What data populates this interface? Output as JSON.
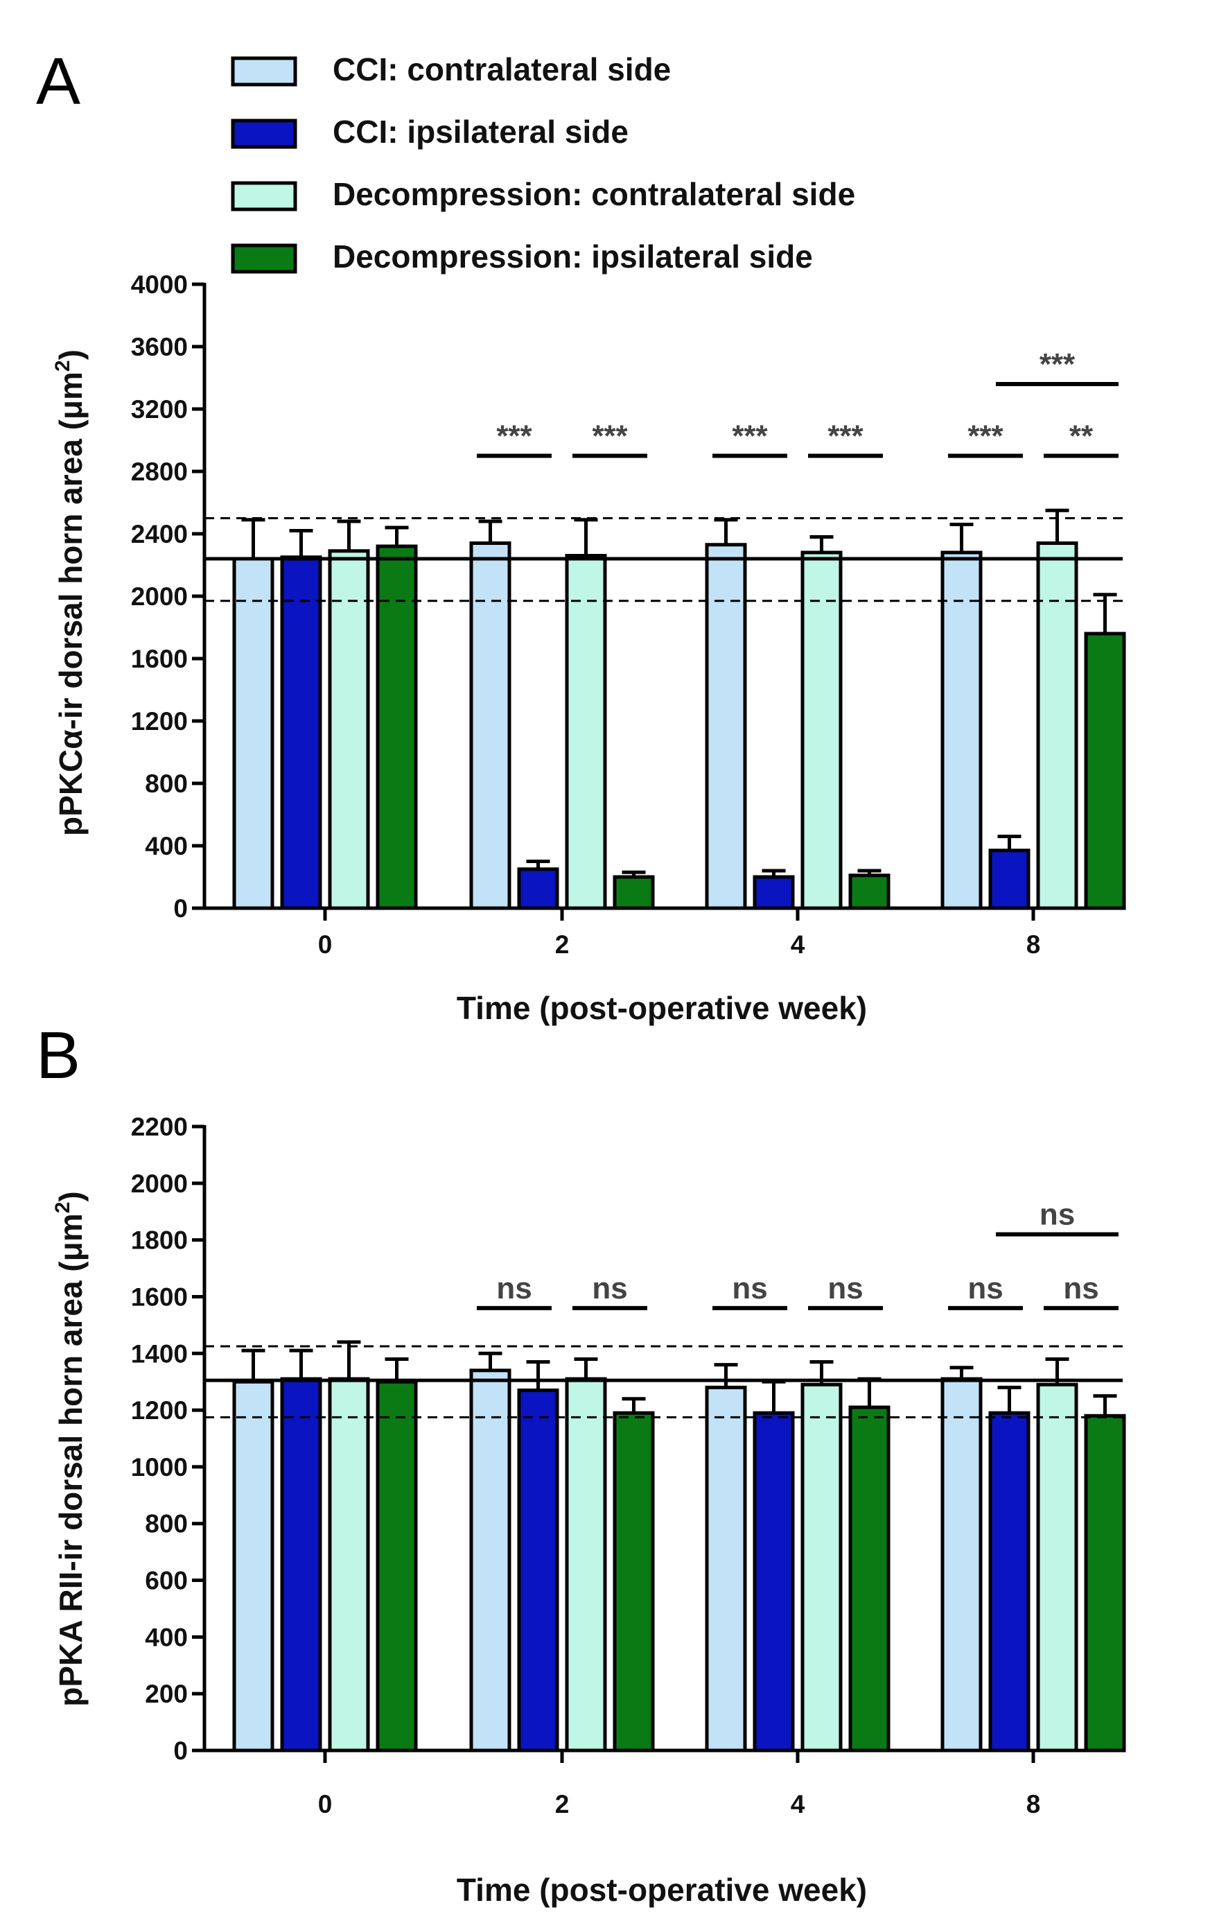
{
  "legend": [
    {
      "label": "CCI: contralateral side",
      "color": "#c2e2f7"
    },
    {
      "label": "CCI: ipsilateral side",
      "color": "#0a14c0"
    },
    {
      "label": "Decompression: contralateral side",
      "color": "#bff6e6"
    },
    {
      "label": "Decompression: ipsilateral side",
      "color": "#0a7a14"
    }
  ],
  "chart_data": [
    {
      "panel": "A",
      "type": "bar",
      "xlabel": "Time (post-operative week)",
      "ylabel": "pPKCα-ir dorsal horn area (μm²)",
      "ylabel_main": "pPKCα-ir dorsal horn area (μm",
      "ylabel_sup": "2",
      "ylabel_close": ")",
      "ylim": [
        0,
        4000
      ],
      "yticks": [
        "0",
        "400",
        "800",
        "1200",
        "1600",
        "2000",
        "2400",
        "2800",
        "3200",
        "3600",
        "4000"
      ],
      "categories": [
        "0",
        "2",
        "4",
        "8"
      ],
      "series": [
        {
          "name": "CCI: contralateral side",
          "values": [
            2240,
            2340,
            2330,
            2280
          ],
          "errors": [
            250,
            140,
            160,
            180
          ]
        },
        {
          "name": "CCI: ipsilateral side",
          "values": [
            2250,
            250,
            200,
            370
          ],
          "errors": [
            170,
            50,
            40,
            90
          ]
        },
        {
          "name": "Decompression: contralateral side",
          "values": [
            2290,
            2260,
            2280,
            2340
          ],
          "errors": [
            190,
            230,
            100,
            210
          ]
        },
        {
          "name": "Decompression: ipsilateral side",
          "values": [
            2320,
            200,
            210,
            1760
          ],
          "errors": [
            120,
            30,
            30,
            250
          ]
        }
      ],
      "reference": {
        "mean": 2240,
        "upper": 2500,
        "lower": 1970
      },
      "significance": [
        {
          "label": "***",
          "group": 1,
          "from": 0,
          "to": 1,
          "level": 2900
        },
        {
          "label": "***",
          "group": 1,
          "from": 2,
          "to": 3,
          "level": 2900
        },
        {
          "label": "***",
          "group": 2,
          "from": 0,
          "to": 1,
          "level": 2900
        },
        {
          "label": "***",
          "group": 2,
          "from": 2,
          "to": 3,
          "level": 2900
        },
        {
          "label": "***",
          "group": 3,
          "from": 0,
          "to": 1,
          "level": 2900
        },
        {
          "label": "**",
          "group": 3,
          "from": 2,
          "to": 3,
          "level": 2900
        },
        {
          "label": "***",
          "group": 3,
          "from": 1,
          "to": 3,
          "level": 3360
        }
      ]
    },
    {
      "panel": "B",
      "type": "bar",
      "xlabel": "Time (post-operative week)",
      "ylabel": "pPKA RII-ir dorsal horn area (μm²)",
      "ylabel_main": "pPKA RII-ir dorsal horn area (μm",
      "ylabel_sup": "2",
      "ylabel_close": ")",
      "ylim": [
        0,
        2200
      ],
      "yticks": [
        "0",
        "200",
        "400",
        "600",
        "800",
        "1000",
        "1200",
        "1400",
        "1600",
        "1800",
        "2000",
        "2200"
      ],
      "categories": [
        "0",
        "2",
        "4",
        "8"
      ],
      "series": [
        {
          "name": "CCI: contralateral side",
          "values": [
            1300,
            1340,
            1280,
            1310
          ],
          "errors": [
            110,
            60,
            80,
            40
          ]
        },
        {
          "name": "CCI: ipsilateral side",
          "values": [
            1310,
            1270,
            1190,
            1190
          ],
          "errors": [
            100,
            100,
            110,
            90
          ]
        },
        {
          "name": "Decompression: contralateral side",
          "values": [
            1310,
            1310,
            1290,
            1290
          ],
          "errors": [
            130,
            70,
            80,
            90
          ]
        },
        {
          "name": "Decompression: ipsilateral side",
          "values": [
            1300,
            1190,
            1210,
            1180
          ],
          "errors": [
            80,
            50,
            100,
            70
          ]
        }
      ],
      "reference": {
        "mean": 1305,
        "upper": 1425,
        "lower": 1175
      },
      "significance": [
        {
          "label": "ns",
          "group": 1,
          "from": 0,
          "to": 1,
          "level": 1560
        },
        {
          "label": "ns",
          "group": 1,
          "from": 2,
          "to": 3,
          "level": 1560
        },
        {
          "label": "ns",
          "group": 2,
          "from": 0,
          "to": 1,
          "level": 1560
        },
        {
          "label": "ns",
          "group": 2,
          "from": 2,
          "to": 3,
          "level": 1560
        },
        {
          "label": "ns",
          "group": 3,
          "from": 0,
          "to": 1,
          "level": 1560
        },
        {
          "label": "ns",
          "group": 3,
          "from": 2,
          "to": 3,
          "level": 1560
        },
        {
          "label": "ns",
          "group": 3,
          "from": 1,
          "to": 3,
          "level": 1820
        }
      ]
    }
  ]
}
